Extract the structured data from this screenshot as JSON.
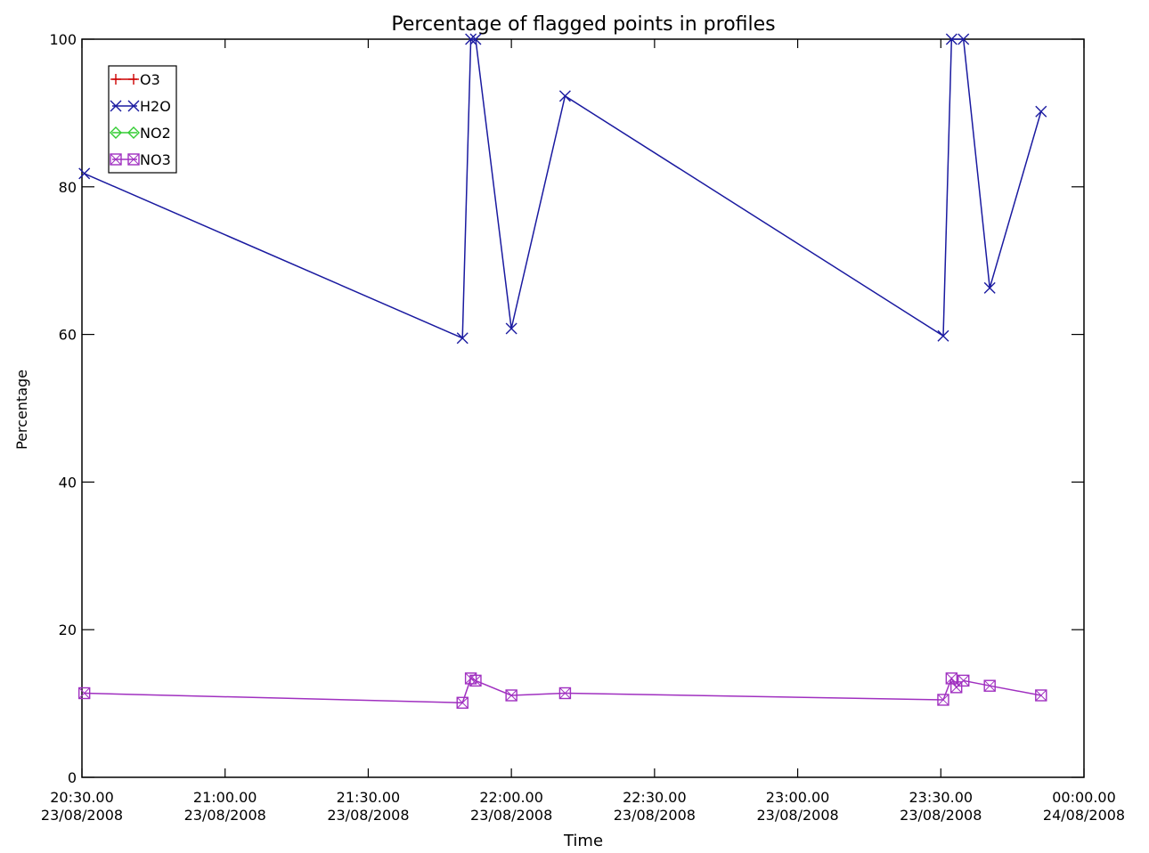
{
  "chart_data": {
    "type": "line",
    "title": "Percentage of flagged points in profiles",
    "xlabel": "Time",
    "ylabel": "Percentage",
    "xlim": [
      "23/08/2008 20:30:00",
      "24/08/2008 00:00:00"
    ],
    "ylim": [
      0,
      100
    ],
    "x_ticks": [
      {
        "time": "20:30.00",
        "date": "23/08/2008"
      },
      {
        "time": "21:00.00",
        "date": "23/08/2008"
      },
      {
        "time": "21:30.00",
        "date": "23/08/2008"
      },
      {
        "time": "22:00.00",
        "date": "23/08/2008"
      },
      {
        "time": "22:30.00",
        "date": "23/08/2008"
      },
      {
        "time": "23:00.00",
        "date": "23/08/2008"
      },
      {
        "time": "23:30.00",
        "date": "23/08/2008"
      },
      {
        "time": "00:00.00",
        "date": "24/08/2008"
      }
    ],
    "y_ticks": [
      "0",
      "20",
      "40",
      "60",
      "80",
      "100"
    ],
    "grid": false,
    "legend": "top-left",
    "series": [
      {
        "name": "O3",
        "color": "#cc0000",
        "marker": "plus",
        "points": []
      },
      {
        "name": "H2O",
        "color": "#1a1aa0",
        "marker": "cross",
        "points": [
          [
            "23/08/2008 20:30:30",
            81.8
          ],
          [
            "23/08/2008 21:49:45",
            59.5
          ],
          [
            "23/08/2008 21:51:30",
            100
          ],
          [
            "23/08/2008 21:52:30",
            100
          ],
          [
            "23/08/2008 22:00:00",
            60.8
          ],
          [
            "23/08/2008 22:11:15",
            92.3
          ],
          [
            "23/08/2008 23:30:30",
            59.8
          ],
          [
            "23/08/2008 23:32:15",
            100
          ],
          [
            "23/08/2008 23:34:45",
            100
          ],
          [
            "23/08/2008 23:40:15",
            66.3
          ],
          [
            "23/08/2008 23:51:00",
            90.2
          ]
        ]
      },
      {
        "name": "NO2",
        "color": "#33cc33",
        "marker": "diamond",
        "points": []
      },
      {
        "name": "NO3",
        "color": "#a030c0",
        "marker": "box",
        "points": [
          [
            "23/08/2008 20:30:30",
            11.4
          ],
          [
            "23/08/2008 21:49:45",
            10.1
          ],
          [
            "23/08/2008 21:51:30",
            13.4
          ],
          [
            "23/08/2008 21:52:30",
            13.1
          ],
          [
            "23/08/2008 22:00:00",
            11.1
          ],
          [
            "23/08/2008 22:11:15",
            11.4
          ],
          [
            "23/08/2008 23:30:30",
            10.5
          ],
          [
            "23/08/2008 23:32:15",
            13.4
          ],
          [
            "23/08/2008 23:33:15",
            12.2
          ],
          [
            "23/08/2008 23:34:45",
            13.1
          ],
          [
            "23/08/2008 23:40:15",
            12.4
          ],
          [
            "23/08/2008 23:51:00",
            11.1
          ]
        ]
      }
    ]
  }
}
